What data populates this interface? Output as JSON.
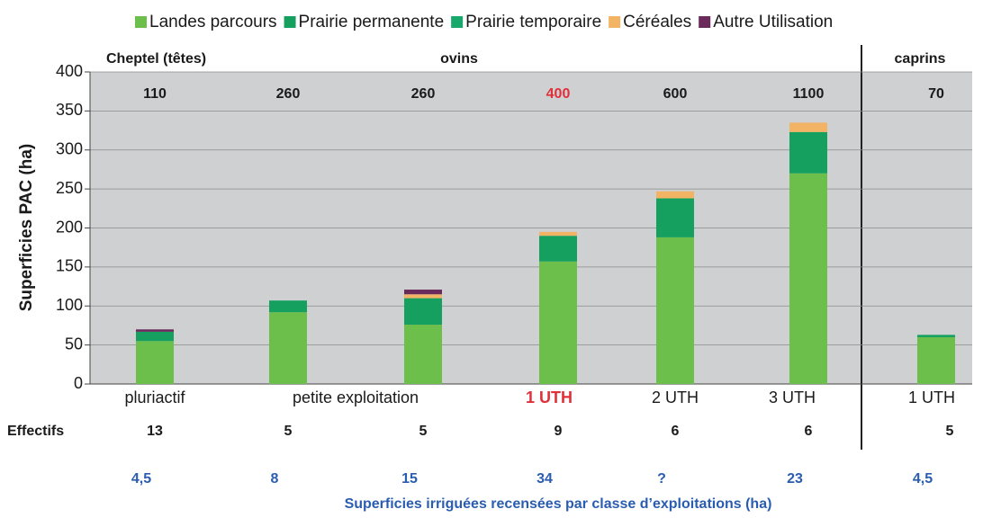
{
  "chart_data": {
    "type": "stacked_bar",
    "y_label": "Superficies PAC (ha)",
    "categories": [
      "pluriactif",
      "petite exploitation",
      null,
      "1 UTH",
      "2 UTH",
      "3 UTH",
      "1 UTH"
    ],
    "highlight_index": 3,
    "highlight_color": "#e0303a",
    "series": [
      {
        "name": "Landes parcours",
        "color": "#6cbf4a",
        "values": [
          55,
          92,
          76,
          157,
          188,
          270,
          60
        ]
      },
      {
        "name": "Prairie permanente",
        "color": "#16a060",
        "values": [
          12,
          15,
          34,
          33,
          50,
          53,
          3
        ]
      },
      {
        "name": "Prairie temporaire",
        "color": "#19a86c",
        "values": [
          0,
          0,
          0,
          0,
          0,
          0,
          0
        ]
      },
      {
        "name": "Céréales",
        "color": "#f2b464",
        "values": [
          0,
          0,
          5,
          5,
          9,
          12,
          0
        ]
      },
      {
        "name": "Autre Utilisation",
        "color": "#6a2a5c",
        "values": [
          3,
          0,
          6,
          0,
          0,
          0,
          0
        ]
      }
    ],
    "ylim": [
      0,
      400
    ],
    "yticks": [
      0,
      50,
      100,
      150,
      200,
      250,
      300,
      350,
      400
    ],
    "grid": true,
    "cheptel_title": "Cheptel (têtes)",
    "group_labels": [
      "ovins",
      "caprins"
    ],
    "cheptel": [
      110,
      260,
      260,
      400,
      600,
      1100,
      70
    ],
    "effectifs_title": "Effectifs",
    "effectifs": [
      13,
      5,
      5,
      9,
      6,
      6,
      5
    ],
    "irrigated": [
      "4,5",
      "8",
      "15",
      "34",
      "?",
      "23",
      "4,5"
    ],
    "irrigated_title": "Superficies irriguées recensées par classe d’exploitations   (ha)"
  }
}
